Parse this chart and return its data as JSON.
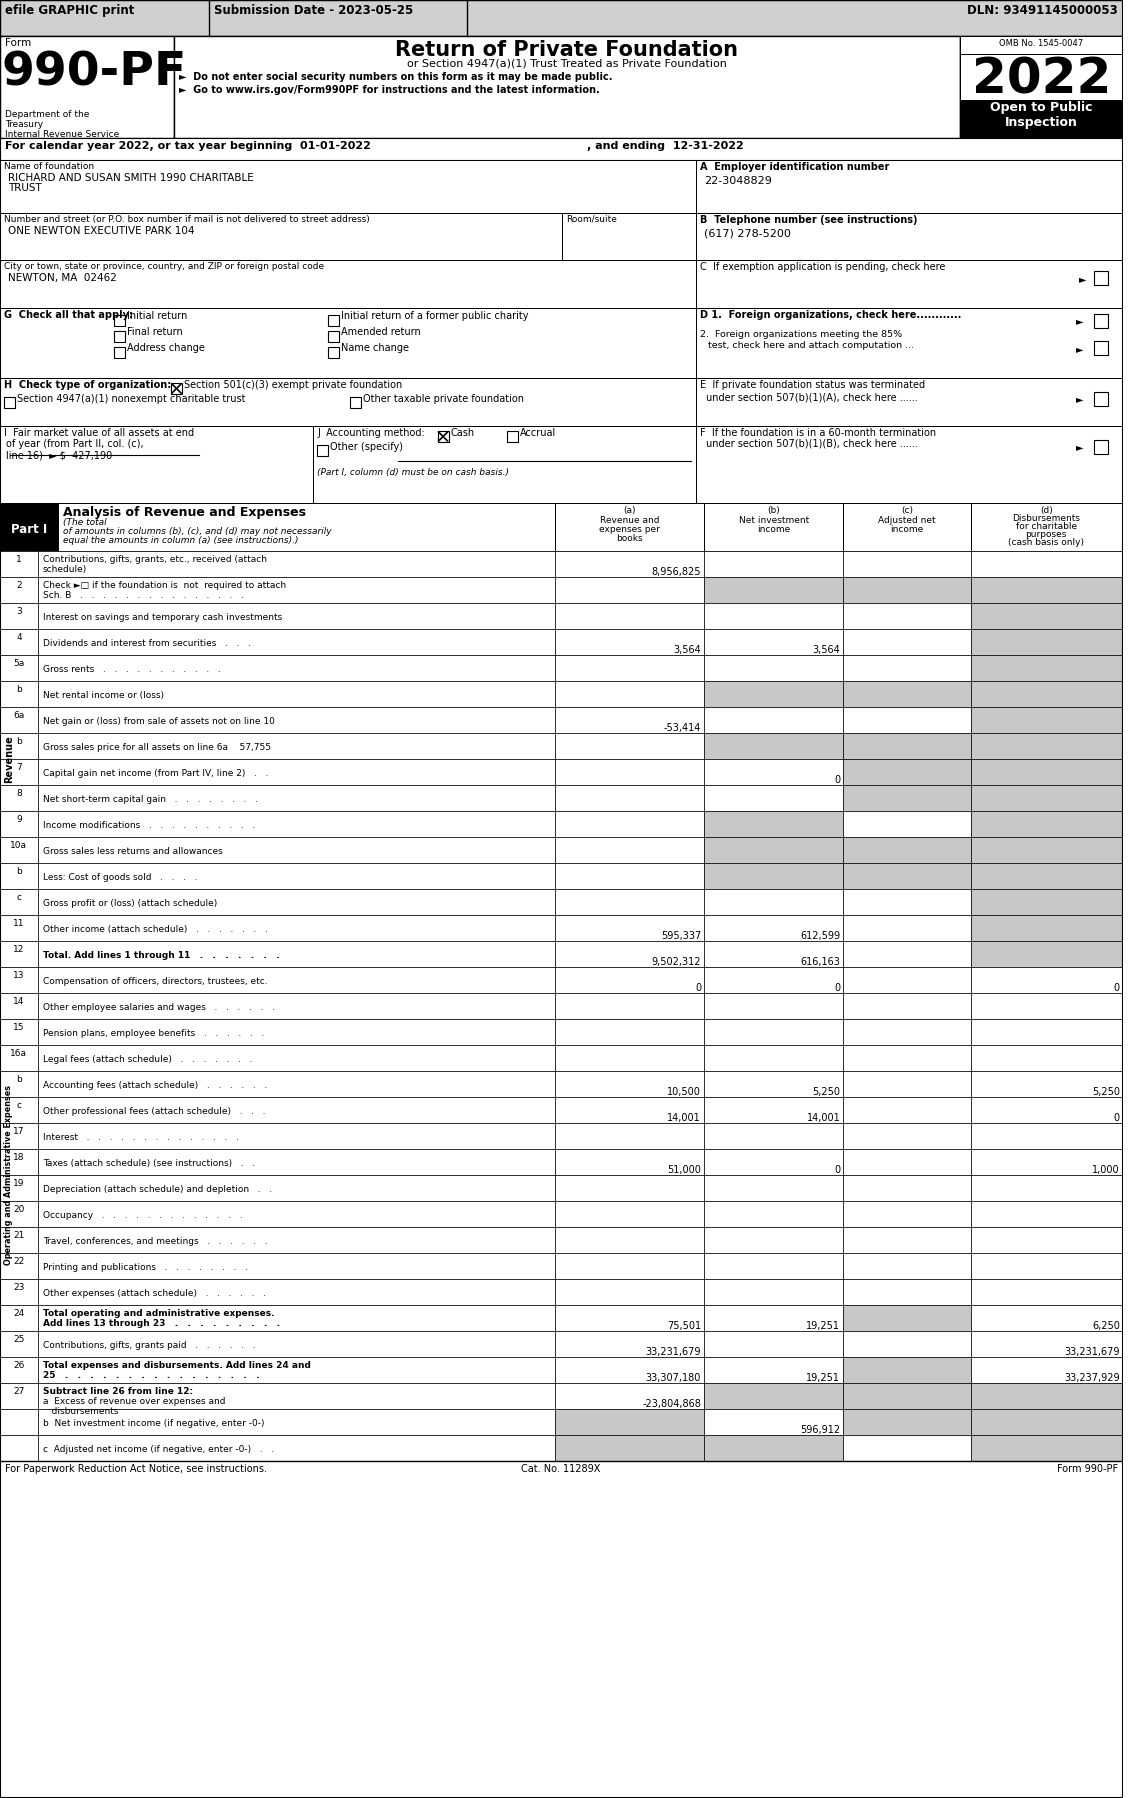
{
  "header_efile": "efile GRAPHIC print",
  "header_submission": "Submission Date - 2023-05-25",
  "header_dln": "DLN: 93491145000053",
  "form_number": "990-PF",
  "dept_lines": [
    "Department of the",
    "Treasury",
    "Internal Revenue Service"
  ],
  "title": "Return of Private Foundation",
  "subtitle": "or Section 4947(a)(1) Trust Treated as Private Foundation",
  "bullet1": "►  Do not enter social security numbers on this form as it may be made public.",
  "bullet2": "►  Go to www.irs.gov/Form990PF for instructions and the latest information.",
  "year": "2022",
  "open_label": "Open to Public",
  "inspection_label": "Inspection",
  "omb": "OMB No. 1545-0047",
  "cal_year_line1": "For calendar year 2022, or tax year beginning  01-01-2022",
  "cal_year_line2": ", and ending  12-31-2022",
  "foundation_name_label": "Name of foundation",
  "foundation_name1": "RICHARD AND SUSAN SMITH 1990 CHARITABLE",
  "foundation_name2": "TRUST",
  "ein_label": "A  Employer identification number",
  "ein": "22-3048829",
  "address_label": "Number and street (or P.O. box number if mail is not delivered to street address)",
  "address": "ONE NEWTON EXECUTIVE PARK 104",
  "room_label": "Room/suite",
  "phone_label": "B  Telephone number (see instructions)",
  "phone": "(617) 278-5200",
  "city_label": "City or town, state or province, country, and ZIP or foreign postal code",
  "city": "NEWTON, MA  02462",
  "c_label": "C  If exemption application is pending, check here",
  "g_label": "G  Check all that apply:",
  "d1_label": "D 1.  Foreign organizations, check here............",
  "d2_line1": "2.  Foreign organizations meeting the 85%",
  "d2_line2": "test, check here and attach computation ...",
  "e_line1": "E  If private foundation status was terminated",
  "e_line2": "under section 507(b)(1)(A), check here ......",
  "h_label": "H  Check type of organization:",
  "h_opt1": "Section 501(c)(3) exempt private foundation",
  "h_opt2": "Section 4947(a)(1) nonexempt charitable trust",
  "h_opt3": "Other taxable private foundation",
  "f_line1": "F  If the foundation is in a 60-month termination",
  "f_line2": "under section 507(b)(1)(B), check here ......",
  "i_line1": "I  Fair market value of all assets at end",
  "i_line2": "of year (from Part II, col. (c),",
  "i_line3": "line 16)  ► $  427,190",
  "j_label": "J  Accounting method:",
  "j_cash": "Cash",
  "j_accrual": "Accrual",
  "j_other": "Other (specify)",
  "j_note": "(Part I, column (d) must be on cash basis.)",
  "col_a_lines": [
    "(a)",
    "Revenue and",
    "expenses per",
    "books"
  ],
  "col_b_lines": [
    "(b)",
    "Net investment",
    "income"
  ],
  "col_c_lines": [
    "(c)",
    "Adjusted net",
    "income"
  ],
  "col_d_lines": [
    "(d)",
    "Disbursements",
    "for charitable",
    "purposes",
    "(cash basis only)"
  ],
  "revenue_rows": [
    {
      "num": "1",
      "label": [
        "Contributions, gifts, grants, etc., received (attach",
        "schedule)"
      ],
      "a": "8,956,825",
      "b": "",
      "c": "",
      "d": "",
      "sb": false,
      "sc": false,
      "sd": false
    },
    {
      "num": "2",
      "label": [
        "Check ►□ if the foundation is  not  required to attach",
        "Sch. B   .   .   .   .   .   .   .   .   .   .   .   .   .   .   ."
      ],
      "a": "",
      "b": "",
      "c": "",
      "d": "",
      "sb": true,
      "sc": true,
      "sd": true
    },
    {
      "num": "3",
      "label": [
        "Interest on savings and temporary cash investments"
      ],
      "a": "",
      "b": "",
      "c": "",
      "d": "",
      "sb": false,
      "sc": false,
      "sd": true
    },
    {
      "num": "4",
      "label": [
        "Dividends and interest from securities   .   .   ."
      ],
      "a": "3,564",
      "b": "3,564",
      "c": "",
      "d": "",
      "sb": false,
      "sc": false,
      "sd": true
    },
    {
      "num": "5a",
      "label": [
        "Gross rents   .   .   .   .   .   .   .   .   .   .   ."
      ],
      "a": "",
      "b": "",
      "c": "",
      "d": "",
      "sb": false,
      "sc": false,
      "sd": true
    },
    {
      "num": "b",
      "label": [
        "Net rental income or (loss)"
      ],
      "a": "",
      "b": "",
      "c": "",
      "d": "",
      "sb": true,
      "sc": true,
      "sd": true
    },
    {
      "num": "6a",
      "label": [
        "Net gain or (loss) from sale of assets not on line 10"
      ],
      "a": "-53,414",
      "b": "",
      "c": "",
      "d": "",
      "sb": false,
      "sc": false,
      "sd": true
    },
    {
      "num": "b",
      "label": [
        "Gross sales price for all assets on line 6a    57,755"
      ],
      "a": "",
      "b": "",
      "c": "",
      "d": "",
      "sb": true,
      "sc": true,
      "sd": true
    },
    {
      "num": "7",
      "label": [
        "Capital gain net income (from Part IV, line 2)   .   ."
      ],
      "a": "",
      "b": "0",
      "c": "",
      "d": "",
      "sb": false,
      "sc": true,
      "sd": true
    },
    {
      "num": "8",
      "label": [
        "Net short-term capital gain   .   .   .   .   .   .   .   ."
      ],
      "a": "",
      "b": "",
      "c": "",
      "d": "",
      "sb": false,
      "sc": true,
      "sd": true
    },
    {
      "num": "9",
      "label": [
        "Income modifications   .   .   .   .   .   .   .   .   .   ."
      ],
      "a": "",
      "b": "",
      "c": "",
      "d": "",
      "sb": true,
      "sc": false,
      "sd": true
    },
    {
      "num": "10a",
      "label": [
        "Gross sales less returns and allowances"
      ],
      "a": "",
      "b": "",
      "c": "",
      "d": "",
      "sb": true,
      "sc": true,
      "sd": true
    },
    {
      "num": "b",
      "label": [
        "Less: Cost of goods sold   .   .   .   ."
      ],
      "a": "",
      "b": "",
      "c": "",
      "d": "",
      "sb": true,
      "sc": true,
      "sd": true
    },
    {
      "num": "c",
      "label": [
        "Gross profit or (loss) (attach schedule)"
      ],
      "a": "",
      "b": "",
      "c": "",
      "d": "",
      "sb": false,
      "sc": false,
      "sd": true
    },
    {
      "num": "11",
      "label": [
        "Other income (attach schedule)   .   .   .   .   .   .   ."
      ],
      "a": "595,337",
      "b": "612,599",
      "c": "",
      "d": "",
      "sb": false,
      "sc": false,
      "sd": true
    },
    {
      "num": "12",
      "label": [
        "Total. Add lines 1 through 11   .   .   .   .   .   .   ."
      ],
      "a": "9,502,312",
      "b": "616,163",
      "c": "",
      "d": "",
      "sb": false,
      "sc": false,
      "sd": true,
      "bold": true
    }
  ],
  "expense_rows": [
    {
      "num": "13",
      "label": [
        "Compensation of officers, directors, trustees, etc."
      ],
      "a": "0",
      "b": "0",
      "c": "",
      "d": "0"
    },
    {
      "num": "14",
      "label": [
        "Other employee salaries and wages   .   .   .   .   .   ."
      ],
      "a": "",
      "b": "",
      "c": "",
      "d": ""
    },
    {
      "num": "15",
      "label": [
        "Pension plans, employee benefits   .   .   .   .   .   ."
      ],
      "a": "",
      "b": "",
      "c": "",
      "d": ""
    },
    {
      "num": "16a",
      "label": [
        "Legal fees (attach schedule)   .   .   .   .   .   .   ."
      ],
      "a": "",
      "b": "",
      "c": "",
      "d": ""
    },
    {
      "num": "b",
      "label": [
        "Accounting fees (attach schedule)   .   .   .   .   .   ."
      ],
      "a": "10,500",
      "b": "5,250",
      "c": "",
      "d": "5,250"
    },
    {
      "num": "c",
      "label": [
        "Other professional fees (attach schedule)   .   .   ."
      ],
      "a": "14,001",
      "b": "14,001",
      "c": "",
      "d": "0"
    },
    {
      "num": "17",
      "label": [
        "Interest   .   .   .   .   .   .   .   .   .   .   .   .   .   ."
      ],
      "a": "",
      "b": "",
      "c": "",
      "d": ""
    },
    {
      "num": "18",
      "label": [
        "Taxes (attach schedule) (see instructions)   .   ."
      ],
      "a": "51,000",
      "b": "0",
      "c": "",
      "d": "1,000"
    },
    {
      "num": "19",
      "label": [
        "Depreciation (attach schedule) and depletion   .   ."
      ],
      "a": "",
      "b": "",
      "c": "",
      "d": ""
    },
    {
      "num": "20",
      "label": [
        "Occupancy   .   .   .   .   .   .   .   .   .   .   .   .   ."
      ],
      "a": "",
      "b": "",
      "c": "",
      "d": ""
    },
    {
      "num": "21",
      "label": [
        "Travel, conferences, and meetings   .   .   .   .   .   ."
      ],
      "a": "",
      "b": "",
      "c": "",
      "d": ""
    },
    {
      "num": "22",
      "label": [
        "Printing and publications   .   .   .   .   .   .   .   ."
      ],
      "a": "",
      "b": "",
      "c": "",
      "d": ""
    },
    {
      "num": "23",
      "label": [
        "Other expenses (attach schedule)   .   .   .   .   .   ."
      ],
      "a": "",
      "b": "",
      "c": "",
      "d": ""
    }
  ],
  "row24_label1": "Total operating and administrative expenses.",
  "row24_label2": "Add lines 13 through 23   .   .   .   .   .   .   .   .   .",
  "row24_a": "75,501",
  "row24_b": "19,251",
  "row24_c": "",
  "row24_d": "6,250",
  "row25_label": "Contributions, gifts, grants paid   .   .   .   .   .   .",
  "row25_a": "33,231,679",
  "row25_b": "",
  "row25_c": "",
  "row25_d": "33,231,679",
  "row26_label1": "Total expenses and disbursements. Add lines 24 and",
  "row26_label2": "25   .   .   .   .   .   .   .   .   .   .   .   .   .   .   .   .",
  "row26_a": "33,307,180",
  "row26_b": "19,251",
  "row26_c": "",
  "row26_d": "33,237,929",
  "row27_label": "Subtract line 26 from line 12:",
  "row27a_label": "a  Excess of revenue over expenses and",
  "row27a_label2": "disbursements",
  "row27a_a": "-23,804,868",
  "row27b_label": "b  Net investment income (if negative, enter -0-)",
  "row27b_b": "596,912",
  "row27c_label": "c  Adjusted net income (if negative, enter -0-)   .   .",
  "footer_left": "For Paperwork Reduction Act Notice, see instructions.",
  "footer_cat": "Cat. No. 11289X",
  "footer_form": "Form 990-PF",
  "gray": "#c8c8c8",
  "black": "#000000",
  "white": "#ffffff",
  "darkgray_header": "#d0d0d0"
}
